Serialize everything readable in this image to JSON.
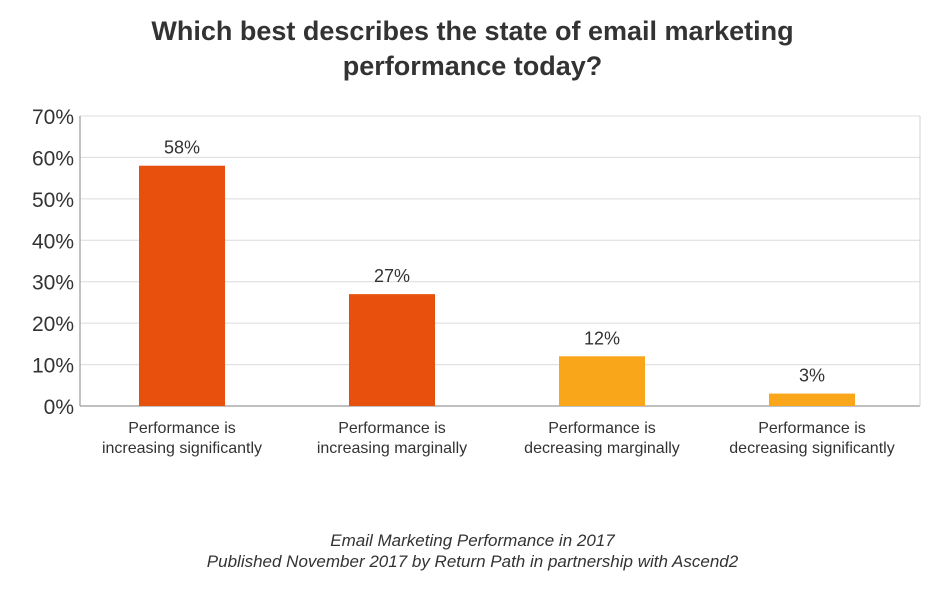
{
  "chart_data": {
    "type": "bar",
    "title_lines": [
      "Which best describes the state of email marketing",
      "performance today?"
    ],
    "categories": [
      [
        "Performance is",
        "increasing significantly"
      ],
      [
        "Performance is",
        "increasing marginally"
      ],
      [
        "Performance is",
        "decreasing marginally"
      ],
      [
        "Performance is",
        "decreasing significantly"
      ]
    ],
    "values": [
      58,
      27,
      12,
      3
    ],
    "value_labels": [
      "58%",
      "27%",
      "12%",
      "3%"
    ],
    "bar_colors": [
      "#e8500e",
      "#e8500e",
      "#f9a61a",
      "#f9a61a"
    ],
    "ylim": [
      0,
      70
    ],
    "yticks": [
      0,
      10,
      20,
      30,
      40,
      50,
      60,
      70
    ],
    "ytick_labels": [
      "0%",
      "10%",
      "20%",
      "30%",
      "40%",
      "50%",
      "60%",
      "70%"
    ],
    "grid": true,
    "legend": "none"
  },
  "footer": {
    "line1": "Email Marketing Performance in 2017",
    "line2": "Published November 2017 by Return Path in partnership with Ascend2"
  }
}
